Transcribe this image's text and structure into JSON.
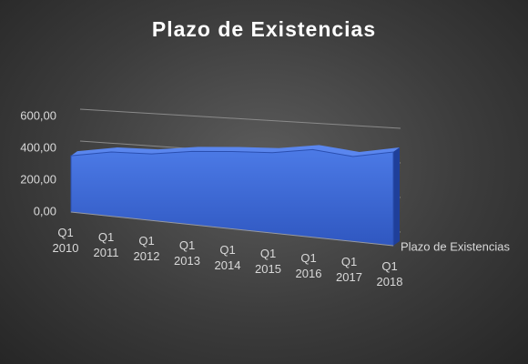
{
  "chart_data": {
    "type": "area3d",
    "title": "Plazo de Existencias",
    "categories": [
      "Q1 2010",
      "Q1 2011",
      "Q1 2012",
      "Q1 2013",
      "Q1 2014",
      "Q1 2015",
      "Q1 2016",
      "Q1 2017",
      "Q1 2018"
    ],
    "series": [
      {
        "name": "Plazo de Existencias",
        "color": "#3a66d4",
        "values": [
          360,
          385,
          375,
          390,
          390,
          385,
          400,
          370,
          390
        ]
      }
    ],
    "ylim": [
      0,
      600
    ],
    "yticks": [
      {
        "value": 0,
        "label": "0,00"
      },
      {
        "value": 200,
        "label": "200,00"
      },
      {
        "value": 400,
        "label": "400,00"
      },
      {
        "value": 600,
        "label": "600,00"
      }
    ],
    "grid": true
  }
}
